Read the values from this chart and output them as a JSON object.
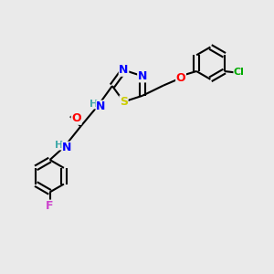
{
  "background_color": "#eaeaea",
  "atom_colors": {
    "N": "#0000ff",
    "S": "#cccc00",
    "O": "#ff0000",
    "Cl": "#00aa00",
    "F": "#cc44cc",
    "C": "#000000",
    "H": "#44aaaa"
  },
  "bond_color": "#000000",
  "bond_width": 1.5,
  "font_size_atoms": 9,
  "fig_width": 3.0,
  "fig_height": 3.0,
  "dpi": 100
}
